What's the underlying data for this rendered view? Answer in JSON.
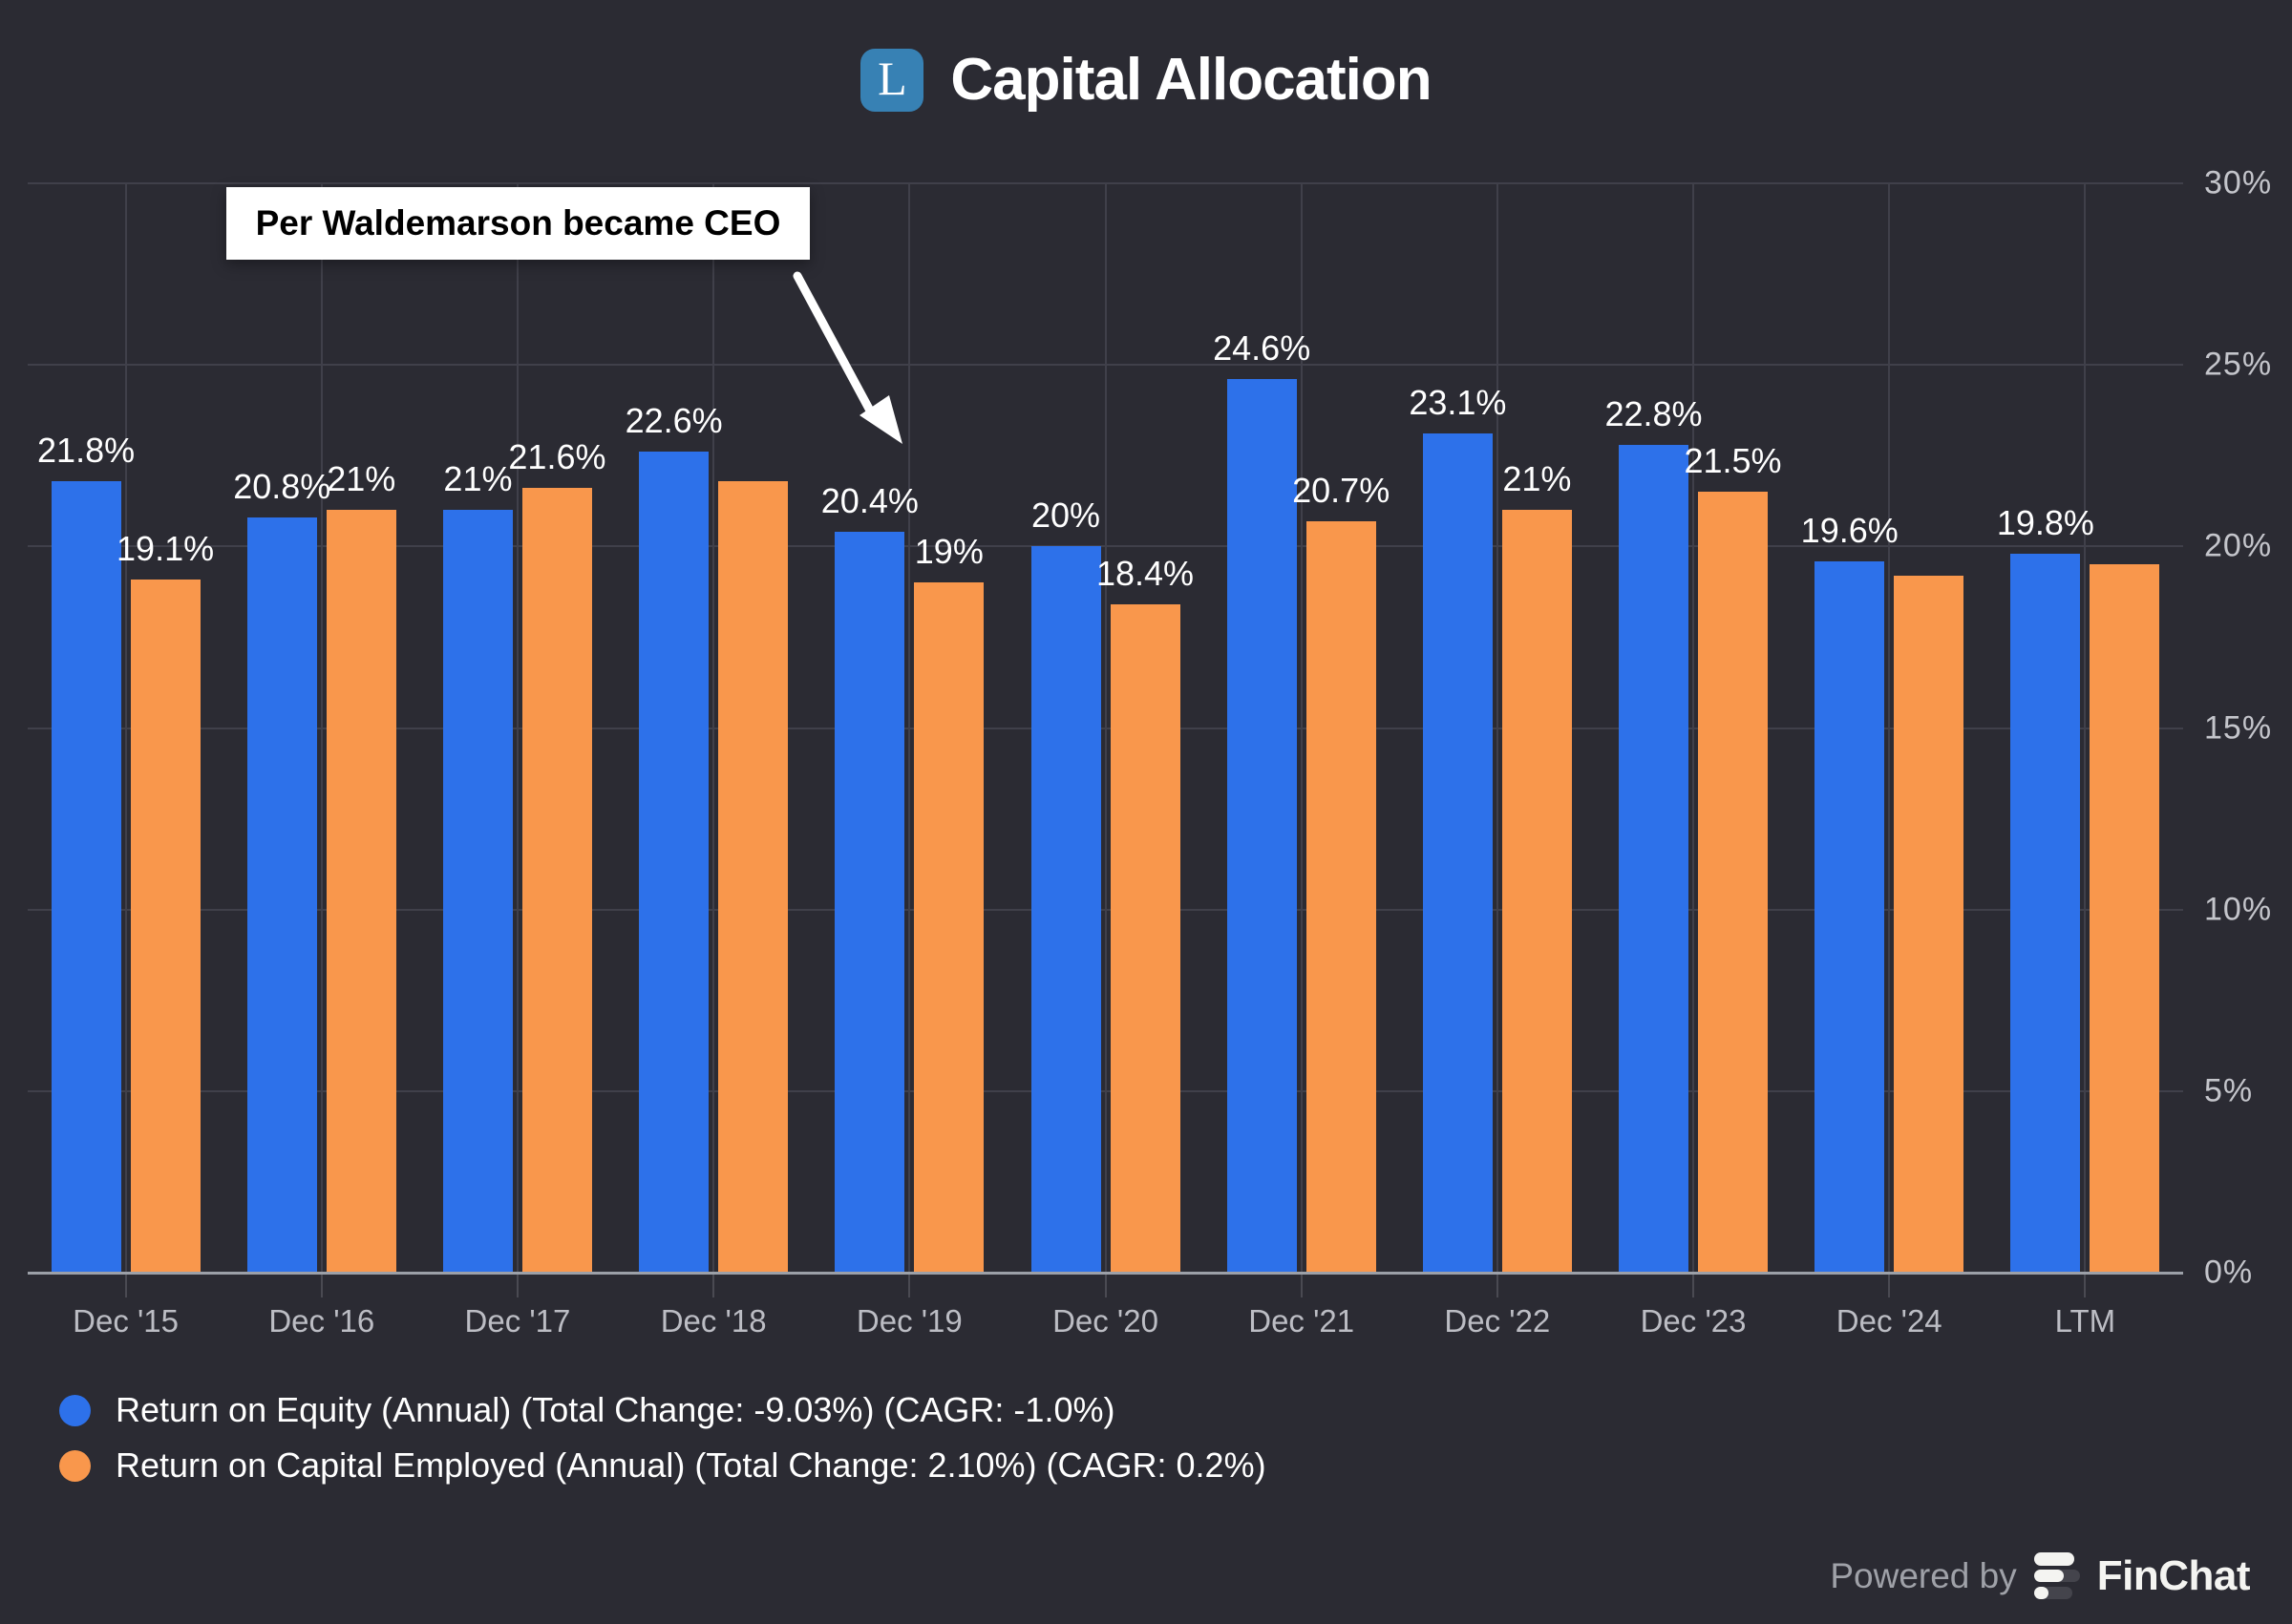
{
  "header": {
    "title": "Capital Allocation",
    "logo_letter": "L"
  },
  "annotation": {
    "text": "Per Waldemarson became CEO"
  },
  "chart_data": {
    "type": "bar",
    "title": "Capital Allocation",
    "categories": [
      "Dec '15",
      "Dec '16",
      "Dec '17",
      "Dec '18",
      "Dec '19",
      "Dec '20",
      "Dec '21",
      "Dec '22",
      "Dec '23",
      "Dec '24",
      "LTM"
    ],
    "series": [
      {
        "name": "Return on Equity (Annual)",
        "color": "#2D71EA",
        "values": [
          21.8,
          20.8,
          21,
          22.6,
          20.4,
          20,
          24.6,
          23.1,
          22.8,
          19.6,
          19.8
        ],
        "labels": [
          "21.8%",
          "20.8%",
          "21%",
          "22.6%",
          "20.4%",
          "20%",
          "24.6%",
          "23.1%",
          "22.8%",
          "19.6%",
          "19.8%"
        ]
      },
      {
        "name": "Return on Capital Employed (Annual)",
        "color": "#F9974C",
        "values": [
          19.1,
          21,
          21.6,
          21.8,
          19,
          18.4,
          20.7,
          21,
          21.5,
          19.2,
          19.5
        ],
        "labels": [
          "19.1%",
          "21%",
          "21.6%",
          "",
          "19%",
          "18.4%",
          "20.7%",
          "21%",
          "21.5%",
          "",
          ""
        ]
      }
    ],
    "ylim": [
      0,
      30
    ],
    "ytick_values": [
      0,
      5,
      10,
      15,
      20,
      25,
      30
    ],
    "ytick_labels": [
      "0%",
      "5%",
      "10%",
      "15%",
      "20%",
      "25%",
      "30%"
    ],
    "grid": true,
    "yaxis_position": "right",
    "legend_position": "bottom-left",
    "annotation": {
      "text": "Per Waldemarson became CEO",
      "points_to": "Dec '19"
    }
  },
  "legend": {
    "items": [
      {
        "label": "Return on Equity (Annual) (Total Change: -9.03%) (CAGR: -1.0%)",
        "color": "#2D71EA"
      },
      {
        "label": "Return on Capital Employed (Annual) (Total Change: 2.10%) (CAGR: 0.2%)",
        "color": "#F9974C"
      }
    ]
  },
  "footer": {
    "powered_by": "Powered by",
    "brand": "FinChat"
  },
  "colors": {
    "background": "#2B2B33",
    "series_blue": "#2D71EA",
    "series_orange": "#F9974C",
    "gridline": "#40404A",
    "axis_line": "#9CA0A8",
    "axis_label": "#C4C5CB",
    "bar_label": "#FFFFFF",
    "logo_badge": "#3781B4",
    "annotation_bg": "#FFFFFF",
    "annotation_text": "#000000",
    "powered_by_text": "#9FA1A8"
  }
}
